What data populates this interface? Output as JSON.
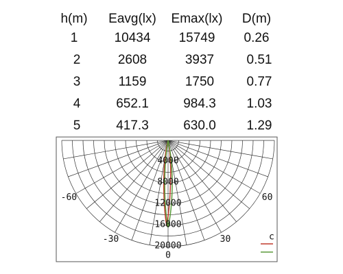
{
  "table": {
    "headers": [
      "h(m)",
      "Eavg(lx)",
      "Emax(lx)",
      "D(m)"
    ],
    "rows": [
      [
        "1",
        "10434",
        "15749",
        "0.26"
      ],
      [
        "2",
        "2608",
        "3937",
        "0.51"
      ],
      [
        "3",
        "1159",
        "1750",
        "0.77"
      ],
      [
        "4",
        "652.1",
        "984.3",
        "1.03"
      ],
      [
        "5",
        "417.3",
        "630.0",
        "1.29"
      ]
    ]
  },
  "polar": {
    "radial_ticks": [
      4000,
      8000,
      12000,
      16000,
      20000
    ],
    "angle_ticks": [
      -60,
      -30,
      0,
      30,
      60
    ],
    "legend": "c"
  }
}
